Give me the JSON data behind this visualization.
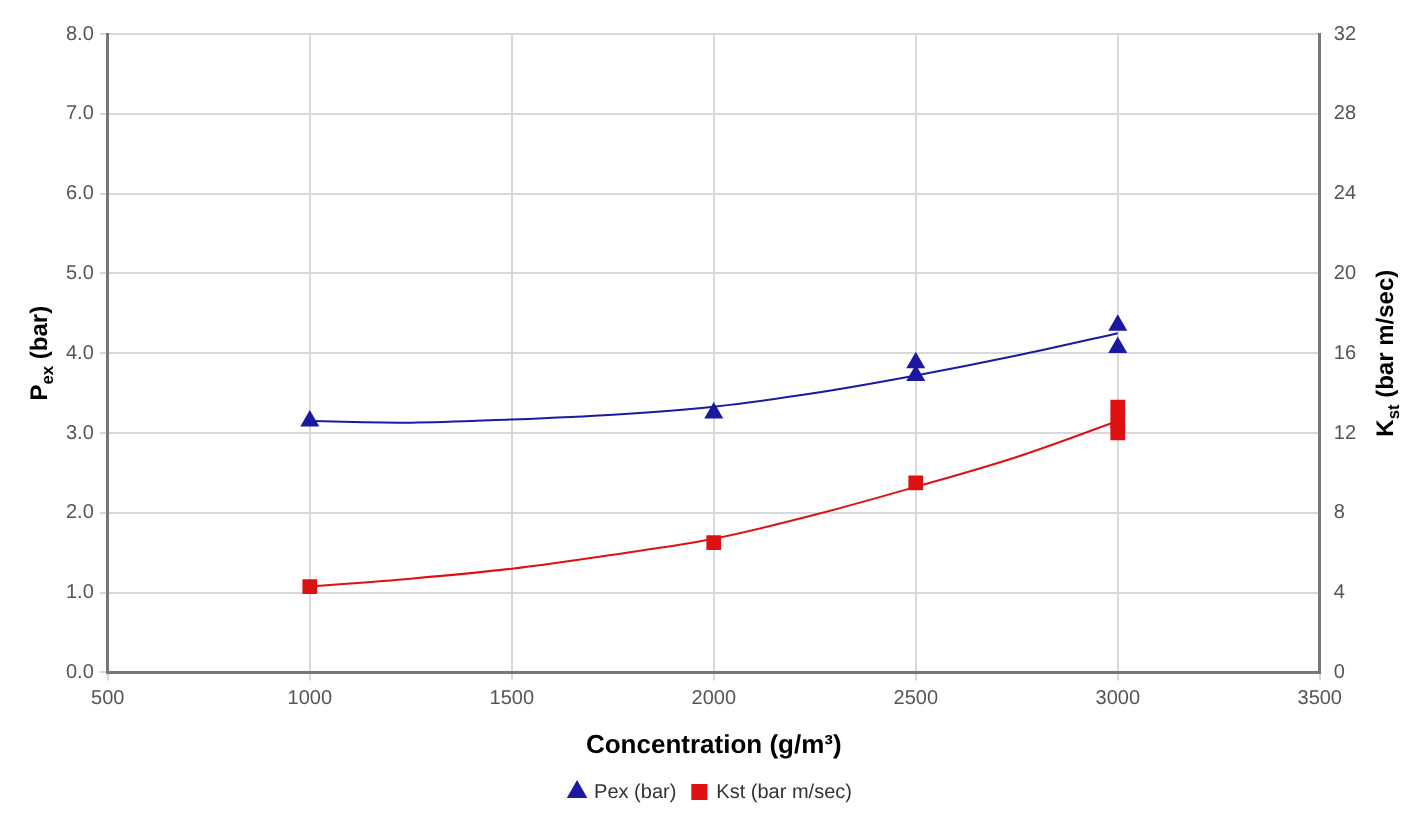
{
  "chart_data": {
    "type": "scatter",
    "xlabel": "Concentration (g/m³)",
    "ylabel": "P$_{ex}$ (bar)",
    "y2label": "K$_{st}$ (bar m/sec)",
    "series": [
      {
        "name": "Pex (bar)",
        "color": "#1a1aa0",
        "marker": "triangle",
        "x": [
          1000,
          2000,
          2500,
          2500,
          3000,
          3000
        ],
        "values": [
          3.15,
          3.25,
          3.88,
          3.72,
          4.35,
          4.07
        ]
      },
      {
        "name": "Kst (bar m/sec)",
        "color": "#dd1111",
        "marker": "square",
        "axis": "y2",
        "x": [
          1000,
          2000,
          2500,
          3000,
          3000,
          3000
        ],
        "values": [
          4.3,
          6.5,
          9.5,
          13.3,
          12.6,
          12.0
        ]
      },
      {
        "type": "line",
        "color": "#1a1aa0",
        "marker": "none",
        "x": [
          1000,
          1250,
          1500,
          1750,
          2000,
          2250,
          2500,
          2750,
          3000
        ],
        "values": [
          3.15,
          3.13,
          3.17,
          3.23,
          3.33,
          3.5,
          3.72,
          3.97,
          4.25
        ]
      },
      {
        "type": "line",
        "color": "#dd1111",
        "marker": "none",
        "axis": "y2",
        "x": [
          1000,
          1250,
          1500,
          1750,
          2000,
          2250,
          2500,
          2750,
          3000
        ],
        "values": [
          4.3,
          4.7,
          5.2,
          5.9,
          6.7,
          7.9,
          9.3,
          10.8,
          12.6
        ]
      }
    ],
    "xlim": [
      500,
      3500
    ],
    "xticks": [
      500,
      1000,
      1500,
      2000,
      2500,
      3000,
      3500
    ],
    "ylim": [
      0,
      8
    ],
    "yticks": [
      {
        "value": 0,
        "label": "0.0"
      },
      {
        "value": 1,
        "label": "1.0"
      },
      {
        "value": 2,
        "label": "2.0"
      },
      {
        "value": 3,
        "label": "3.0"
      },
      {
        "value": 4,
        "label": "4.0"
      },
      {
        "value": 5,
        "label": "5.0"
      },
      {
        "value": 6,
        "label": "6.0"
      },
      {
        "value": 7,
        "label": "7.0"
      },
      {
        "value": 8,
        "label": "8.0"
      }
    ],
    "y2lim": [
      0,
      32
    ],
    "y2ticks": [
      0,
      4,
      8,
      12,
      16,
      20,
      24,
      28,
      32
    ],
    "grid": true,
    "legend": "bottom"
  }
}
